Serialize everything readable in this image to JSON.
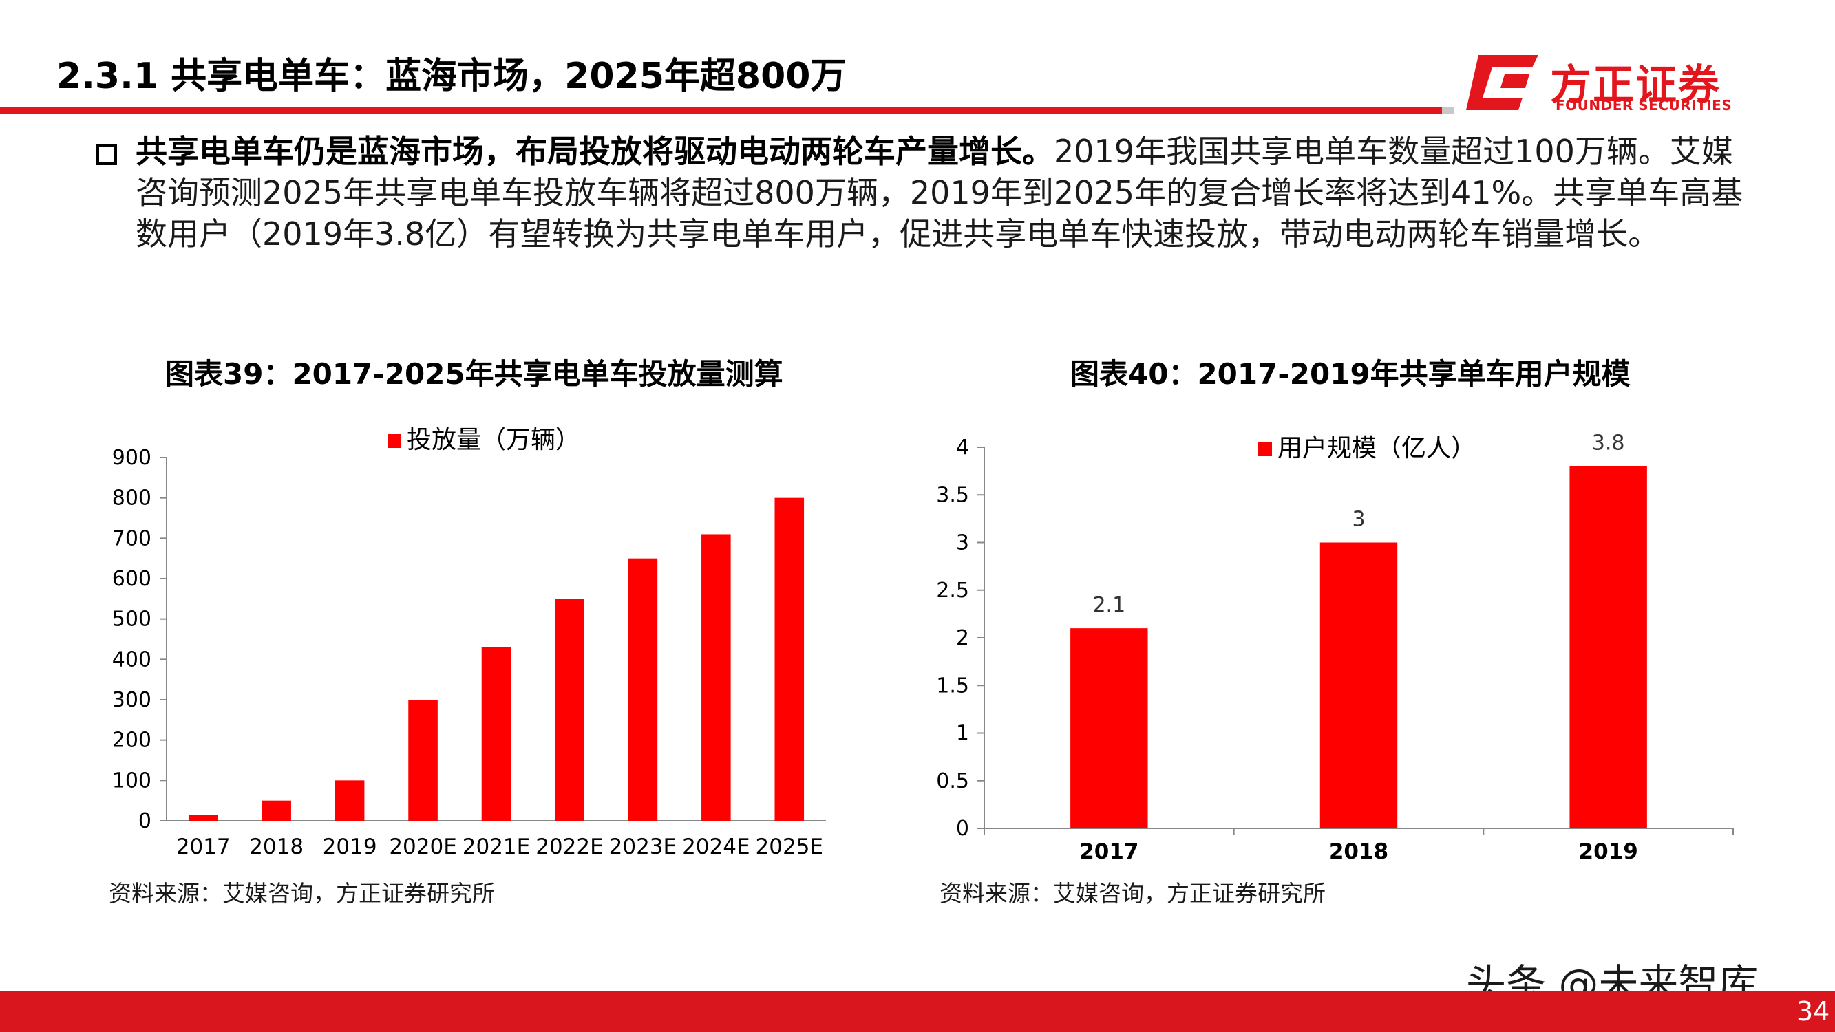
{
  "header": {
    "title": "2.3.1 共享电单车：蓝海市场，2025年超800万",
    "logo_cn": "方正证券",
    "logo_en": "FOUNDER SECURITIES",
    "brand_color": "#e3161e"
  },
  "bullet": {
    "lead": "共享电单车仍是蓝海市场，布局投放将驱动电动两轮车产量增长。",
    "body": "2019年我国共享电单车数量超过100万辆。艾媒咨询预测2025年共享电单车投放车辆将超过800万辆，2019年到2025年的复合增长率将达到41%。共享单车高基数用户（2019年3.8亿）有望转换为共享电单车用户，促进共享电单车快速投放，带动电动两轮车销量增长。"
  },
  "chart_data": [
    {
      "type": "bar",
      "title": "图表39：2017-2025年共享电单车投放量测算",
      "categories": [
        "2017",
        "2018",
        "2019",
        "2020E",
        "2021E",
        "2022E",
        "2023E",
        "2024E",
        "2025E"
      ],
      "series": [
        {
          "name": "投放量（万辆）",
          "values": [
            15,
            50,
            100,
            300,
            430,
            550,
            650,
            710,
            800
          ],
          "color": "#ff0000"
        }
      ],
      "ylim": [
        0,
        900
      ],
      "yticks": [
        0,
        100,
        200,
        300,
        400,
        500,
        600,
        700,
        800,
        900
      ],
      "data_labels": false,
      "legend": "top",
      "source": "资料来源：艾媒咨询，方正证券研究所"
    },
    {
      "type": "bar",
      "title": "图表40：2017-2019年共享单车用户规模",
      "categories": [
        "2017",
        "2018",
        "2019"
      ],
      "series": [
        {
          "name": "用户规模（亿人）",
          "values": [
            2.1,
            3,
            3.8
          ],
          "color": "#ff0000"
        }
      ],
      "ylim": [
        0,
        4
      ],
      "yticks": [
        0,
        0.5,
        1,
        1.5,
        2,
        2.5,
        3,
        3.5,
        4
      ],
      "data_labels": true,
      "legend": "top",
      "source": "资料来源：艾媒咨询，方正证券研究所"
    }
  ],
  "footer": {
    "watermark": "头条 @未来智库",
    "page_number": "34"
  }
}
